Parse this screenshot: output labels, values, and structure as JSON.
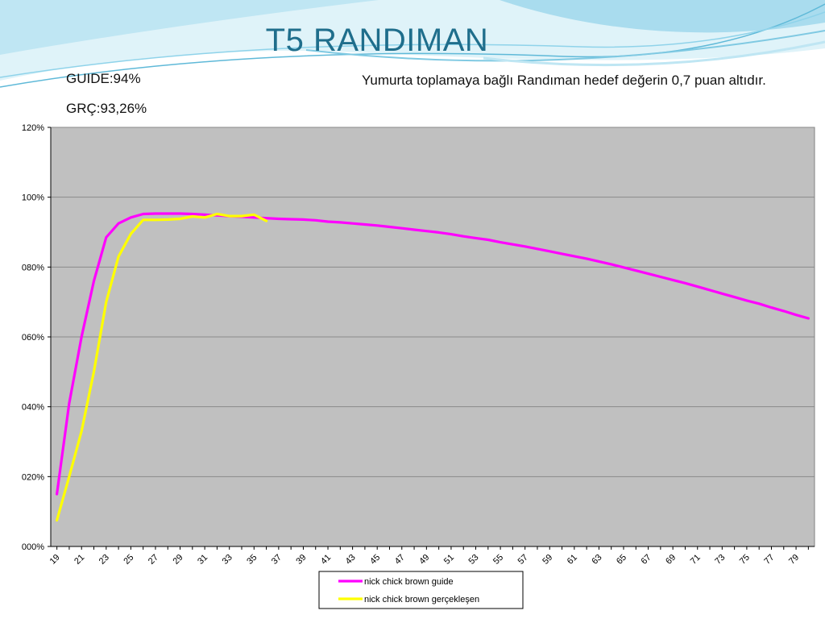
{
  "slide": {
    "title": "T5 RANDIMAN",
    "guide_note": "GUIDE:94%",
    "actual_note": "GRÇ:93,26%",
    "description": "Yumurta toplamaya bağlı Randıman hedef değerin 0,7 puan altıdır."
  },
  "colors": {
    "title": "#1f6e8c",
    "plot_background": "#c0c0c0",
    "gridline": "#8a8a8a",
    "wave_light": "#bfe6f3",
    "wave_mid": "#8fd3ea",
    "wave_dark": "#5fb9d8"
  },
  "chart_data": {
    "type": "line",
    "x_tick_labels": [
      19,
      21,
      23,
      25,
      27,
      29,
      31,
      33,
      35,
      37,
      39,
      41,
      43,
      45,
      47,
      49,
      51,
      53,
      55,
      57,
      59,
      61,
      63,
      65,
      67,
      69,
      71,
      73,
      75,
      77,
      79
    ],
    "y_tick_labels": [
      "000%",
      "020%",
      "040%",
      "060%",
      "080%",
      "100%",
      "120%"
    ],
    "ylim": [
      0,
      120
    ],
    "xlim": [
      18.5,
      80.5
    ],
    "grid": true,
    "legend_position": "bottom",
    "series": [
      {
        "name": "nick chick brown guide",
        "color": "#ff00ff",
        "x": [
          19,
          20,
          21,
          22,
          23,
          24,
          25,
          26,
          27,
          28,
          29,
          30,
          31,
          32,
          33,
          34,
          35,
          36,
          37,
          38,
          39,
          40,
          41,
          42,
          43,
          44,
          45,
          46,
          47,
          48,
          49,
          50,
          51,
          52,
          53,
          54,
          55,
          56,
          57,
          58,
          59,
          60,
          61,
          62,
          63,
          64,
          65,
          66,
          67,
          68,
          69,
          70,
          71,
          72,
          73,
          74,
          75,
          76,
          77,
          78,
          79,
          80
        ],
        "y": [
          15,
          41,
          60,
          76,
          88.5,
          92.5,
          94.2,
          95.2,
          95.3,
          95.3,
          95.3,
          95.2,
          95.0,
          94.8,
          94.6,
          94.4,
          94.2,
          94.0,
          93.8,
          93.7,
          93.6,
          93.4,
          93.0,
          92.8,
          92.5,
          92.2,
          91.9,
          91.5,
          91.1,
          90.7,
          90.3,
          89.9,
          89.4,
          88.8,
          88.3,
          87.8,
          87.1,
          86.5,
          85.9,
          85.2,
          84.5,
          83.8,
          83.1,
          82.4,
          81.6,
          80.8,
          79.9,
          79.0,
          78.1,
          77.2,
          76.3,
          75.4,
          74.4,
          73.4,
          72.4,
          71.4,
          70.4,
          69.5,
          68.4,
          67.4,
          66.3,
          65.3
        ]
      },
      {
        "name": "nick chick brown gerçekleşen",
        "color": "#ffff00",
        "x": [
          19,
          20,
          21,
          22,
          23,
          24,
          25,
          26,
          27,
          28,
          29,
          30,
          31,
          32,
          33,
          34,
          35,
          36
        ],
        "y": [
          7.5,
          20,
          33,
          50,
          70,
          83,
          89.5,
          93.5,
          93.5,
          93.6,
          93.8,
          94.5,
          94.2,
          95.2,
          94.6,
          94.6,
          95.0,
          93.2
        ]
      }
    ]
  }
}
